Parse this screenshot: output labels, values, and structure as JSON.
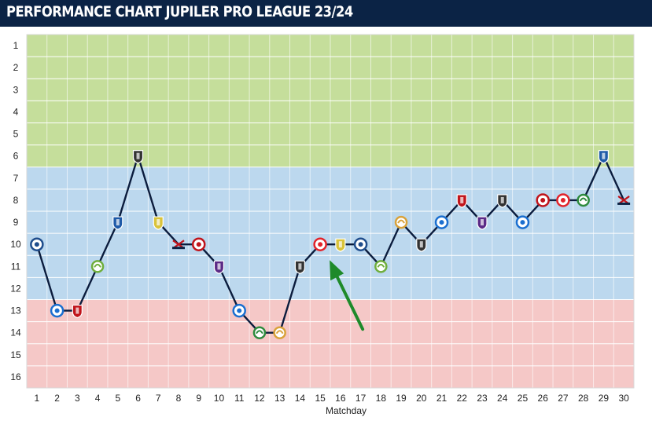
{
  "header": {
    "title": "PERFORMANCE CHART JUPILER PRO LEAGUE 23/24"
  },
  "colors": {
    "header_bg": "#0b2345",
    "zone_top": "#c5de9b",
    "zone_middle": "#bcd8ee",
    "zone_bottom": "#f5c8c7",
    "line": "#0b1c3d",
    "arrow": "#1e8a2a"
  },
  "chart_data": {
    "type": "line",
    "title": "PERFORMANCE CHART JUPILER PRO LEAGUE 23/24",
    "xlabel": "Matchday",
    "ylabel": "",
    "x": [
      1,
      2,
      3,
      4,
      5,
      6,
      7,
      8,
      9,
      10,
      11,
      12,
      13,
      14,
      15,
      16,
      17,
      18,
      19,
      20,
      21,
      22,
      23,
      24,
      25,
      26,
      27,
      28,
      29,
      30
    ],
    "y_ticks": [
      1,
      2,
      3,
      4,
      5,
      6,
      7,
      8,
      9,
      10,
      11,
      12,
      13,
      14,
      15,
      16
    ],
    "ylim": [
      1,
      16
    ],
    "y_inverted": true,
    "grid": true,
    "zones": [
      {
        "name": "top",
        "from": 1,
        "to": 6,
        "color": "#c5de9b"
      },
      {
        "name": "middle",
        "from": 7,
        "to": 12,
        "color": "#bcd8ee"
      },
      {
        "name": "bottom",
        "from": 13,
        "to": 16,
        "color": "#f5c8c7"
      }
    ],
    "series": [
      {
        "values": [
          10,
          13,
          13,
          11,
          9,
          6,
          9,
          10,
          10,
          11,
          13,
          14,
          14,
          11,
          10,
          10,
          10,
          11,
          9,
          10,
          9,
          8,
          9,
          8,
          9,
          8,
          8,
          8,
          6,
          8
        ]
      }
    ],
    "opponent_badges": [
      {
        "matchday": 1,
        "icon": "club-brugge-badge",
        "color": "#1f4d8c"
      },
      {
        "matchday": 2,
        "icon": "genk-badge",
        "color": "#1b6fd0"
      },
      {
        "matchday": 3,
        "icon": "rwdm-badge",
        "color": "#c0141b"
      },
      {
        "matchday": 4,
        "icon": "ohl-badge",
        "color": "#6fae3c"
      },
      {
        "matchday": 5,
        "icon": "westerlo-badge",
        "color": "#1f5aa8"
      },
      {
        "matchday": 6,
        "icon": "eupen-badge",
        "color": "#333333"
      },
      {
        "matchday": 7,
        "icon": "westerlo-badge",
        "color": "#d9c33a"
      },
      {
        "matchday": 8,
        "icon": "kortrijk-badge",
        "color": "#c0141b"
      },
      {
        "matchday": 9,
        "icon": "antwerp-badge",
        "color": "#c0141b"
      },
      {
        "matchday": 10,
        "icon": "anderlecht-badge",
        "color": "#5b2a86"
      },
      {
        "matchday": 11,
        "icon": "genk-badge",
        "color": "#1b6fd0"
      },
      {
        "matchday": 12,
        "icon": "cercle-badge",
        "color": "#2e8b3e"
      },
      {
        "matchday": 13,
        "icon": "mechelen-badge",
        "color": "#d9a23a"
      },
      {
        "matchday": 14,
        "icon": "charleroi-badge",
        "color": "#333333"
      },
      {
        "matchday": 15,
        "icon": "standard-badge",
        "color": "#e2242b"
      },
      {
        "matchday": 16,
        "icon": "westerlo-badge",
        "color": "#d9c33a"
      },
      {
        "matchday": 17,
        "icon": "club-brugge-badge",
        "color": "#1f4d8c"
      },
      {
        "matchday": 18,
        "icon": "ohl-badge",
        "color": "#6fae3c"
      },
      {
        "matchday": 19,
        "icon": "mechelen-badge",
        "color": "#d9a23a"
      },
      {
        "matchday": 20,
        "icon": "charleroi-badge",
        "color": "#333333"
      },
      {
        "matchday": 21,
        "icon": "gent-badge",
        "color": "#1b6fd0"
      },
      {
        "matchday": 22,
        "icon": "rwdm-badge",
        "color": "#c0141b"
      },
      {
        "matchday": 23,
        "icon": "anderlecht-badge",
        "color": "#5b2a86"
      },
      {
        "matchday": 24,
        "icon": "eupen-badge",
        "color": "#333333"
      },
      {
        "matchday": 25,
        "icon": "genk-badge",
        "color": "#1b6fd0"
      },
      {
        "matchday": 26,
        "icon": "antwerp-badge",
        "color": "#c0141b"
      },
      {
        "matchday": 27,
        "icon": "standard-badge",
        "color": "#e2242b"
      },
      {
        "matchday": 28,
        "icon": "cercle-badge",
        "color": "#2e8b3e"
      },
      {
        "matchday": 29,
        "icon": "westerlo-badge",
        "color": "#1f5aa8"
      },
      {
        "matchday": 30,
        "icon": "kortrijk-badge",
        "color": "#c0141b"
      }
    ],
    "annotation": {
      "type": "arrow",
      "points_to_matchday": 15,
      "color": "#1e8a2a"
    }
  }
}
